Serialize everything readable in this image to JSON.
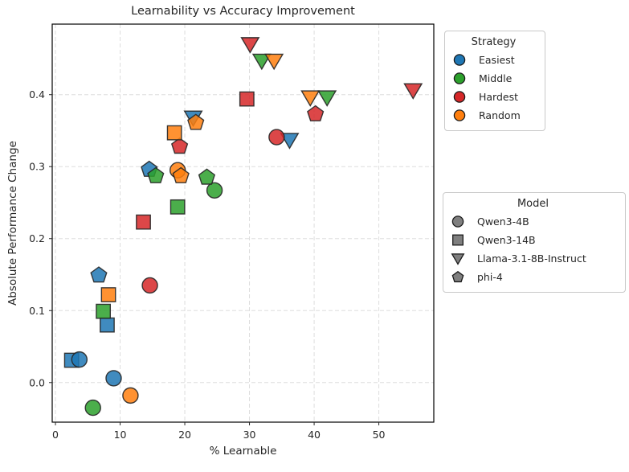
{
  "title": "Learnability vs Accuracy Improvement",
  "axes": {
    "xlabel": "% Learnable",
    "ylabel": "Absolute Performance Change",
    "x_ticks": [
      0,
      10,
      20,
      30,
      40,
      50
    ],
    "y_ticks": [
      0.0,
      0.1,
      0.2,
      0.3,
      0.4
    ],
    "y_tick_labels": [
      "0.0",
      "0.1",
      "0.2",
      "0.3",
      "0.4"
    ],
    "xlim": [
      -0.5,
      58.5
    ],
    "ylim": [
      -0.055,
      0.498
    ],
    "grid": true,
    "grid_style": "dashed"
  },
  "legend_strategy": {
    "title": "Strategy",
    "items": [
      {
        "label": "Easiest",
        "color": "#1f77b4",
        "marker": "circle"
      },
      {
        "label": "Middle",
        "color": "#2ca02c",
        "marker": "circle"
      },
      {
        "label": "Hardest",
        "color": "#d62728",
        "marker": "circle"
      },
      {
        "label": "Random",
        "color": "#ff7f0e",
        "marker": "circle"
      }
    ]
  },
  "legend_model": {
    "title": "Model",
    "marker_color": "#7f7f7f",
    "items": [
      {
        "label": "Qwen3-4B",
        "marker": "circle"
      },
      {
        "label": "Qwen3-14B",
        "marker": "square"
      },
      {
        "label": "Llama-3.1-8B-Instruct",
        "marker": "triangle-down"
      },
      {
        "label": "phi-4",
        "marker": "pentagon"
      }
    ]
  },
  "chart_data": {
    "type": "scatter",
    "title": "Learnability vs Accuracy Improvement",
    "xlabel": "% Learnable",
    "ylabel": "Absolute Performance Change",
    "xlim": [
      -0.5,
      58.5
    ],
    "ylim": [
      -0.055,
      0.498
    ],
    "grid": true,
    "legend_position": "outside-right",
    "strategy_colors": {
      "Easiest": "#1f77b4",
      "Middle": "#2ca02c",
      "Hardest": "#d62728",
      "Random": "#ff7f0e"
    },
    "model_markers": {
      "Qwen3-4B": "circle",
      "Qwen3-14B": "square",
      "Llama-3.1-8B-Instruct": "triangle-down",
      "phi-4": "pentagon"
    },
    "series": [
      {
        "strategy": "Easiest",
        "model": "Qwen3-14B",
        "marker": "square",
        "color": "#1f77b4",
        "points": [
          [
            2.5,
            0.031
          ],
          [
            8.0,
            0.08
          ]
        ]
      },
      {
        "strategy": "Easiest",
        "model": "Qwen3-4B",
        "marker": "circle",
        "color": "#1f77b4",
        "points": [
          [
            3.7,
            0.032
          ],
          [
            9.0,
            0.006
          ]
        ]
      },
      {
        "strategy": "Easiest",
        "model": "Llama-3.1-8B-Instruct",
        "marker": "triangle-down",
        "color": "#1f77b4",
        "points": [
          [
            21.3,
            0.368
          ],
          [
            36.2,
            0.337
          ]
        ]
      },
      {
        "strategy": "Easiest",
        "model": "phi-4",
        "marker": "pentagon",
        "color": "#1f77b4",
        "points": [
          [
            6.7,
            0.149
          ],
          [
            14.5,
            0.296
          ]
        ]
      },
      {
        "strategy": "Middle",
        "model": "Qwen3-14B",
        "marker": "square",
        "color": "#2ca02c",
        "points": [
          [
            7.4,
            0.099
          ],
          [
            18.9,
            0.244
          ]
        ]
      },
      {
        "strategy": "Middle",
        "model": "Qwen3-4B",
        "marker": "circle",
        "color": "#2ca02c",
        "points": [
          [
            5.8,
            -0.035
          ],
          [
            24.6,
            0.267
          ]
        ]
      },
      {
        "strategy": "Middle",
        "model": "Llama-3.1-8B-Instruct",
        "marker": "triangle-down",
        "color": "#2ca02c",
        "points": [
          [
            31.9,
            0.447
          ],
          [
            42.0,
            0.396
          ]
        ]
      },
      {
        "strategy": "Middle",
        "model": "phi-4",
        "marker": "pentagon",
        "color": "#2ca02c",
        "points": [
          [
            15.5,
            0.287
          ],
          [
            23.4,
            0.285
          ]
        ]
      },
      {
        "strategy": "Hardest",
        "model": "Qwen3-14B",
        "marker": "square",
        "color": "#d62728",
        "points": [
          [
            13.6,
            0.223
          ],
          [
            29.6,
            0.394
          ]
        ]
      },
      {
        "strategy": "Hardest",
        "model": "Qwen3-4B",
        "marker": "circle",
        "color": "#d62728",
        "points": [
          [
            14.6,
            0.135
          ],
          [
            34.2,
            0.341
          ]
        ]
      },
      {
        "strategy": "Hardest",
        "model": "Llama-3.1-8B-Instruct",
        "marker": "triangle-down",
        "color": "#d62728",
        "points": [
          [
            30.1,
            0.47
          ],
          [
            55.3,
            0.406
          ]
        ]
      },
      {
        "strategy": "Hardest",
        "model": "phi-4",
        "marker": "pentagon",
        "color": "#d62728",
        "points": [
          [
            19.2,
            0.328
          ],
          [
            40.2,
            0.373
          ]
        ]
      },
      {
        "strategy": "Random",
        "model": "Qwen3-14B",
        "marker": "square",
        "color": "#ff7f0e",
        "points": [
          [
            8.2,
            0.122
          ],
          [
            18.4,
            0.347
          ]
        ]
      },
      {
        "strategy": "Random",
        "model": "Qwen3-4B",
        "marker": "circle",
        "color": "#ff7f0e",
        "points": [
          [
            11.6,
            -0.018
          ],
          [
            18.9,
            0.295
          ]
        ]
      },
      {
        "strategy": "Random",
        "model": "Llama-3.1-8B-Instruct",
        "marker": "triangle-down",
        "color": "#ff7f0e",
        "points": [
          [
            33.8,
            0.447
          ],
          [
            39.4,
            0.396
          ]
        ]
      },
      {
        "strategy": "Random",
        "model": "phi-4",
        "marker": "pentagon",
        "color": "#ff7f0e",
        "points": [
          [
            19.4,
            0.287
          ],
          [
            21.7,
            0.361
          ]
        ]
      }
    ]
  }
}
